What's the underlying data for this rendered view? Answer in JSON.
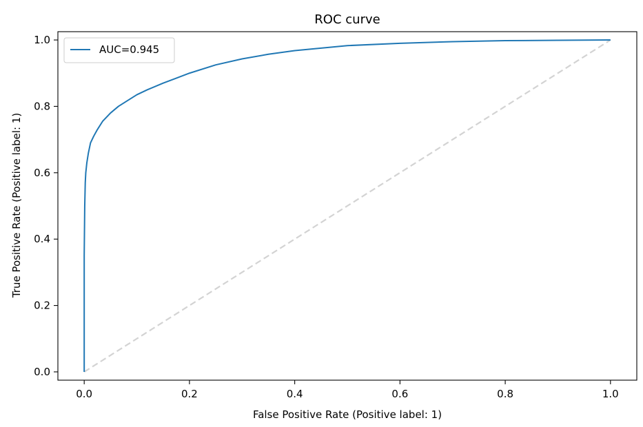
{
  "chart_data": {
    "type": "line",
    "title": "ROC curve",
    "xlabel": "False Positive Rate (Positive label: 1)",
    "ylabel": "True Positive Rate (Positive label: 1)",
    "xlim": [
      -0.05,
      1.05
    ],
    "ylim": [
      -0.025,
      1.025
    ],
    "x_ticks": [
      "0.0",
      "0.2",
      "0.4",
      "0.6",
      "0.8",
      "1.0"
    ],
    "y_ticks": [
      "0.0",
      "0.2",
      "0.4",
      "0.6",
      "0.8",
      "1.0"
    ],
    "grid": false,
    "legend_position": "upper-left",
    "series": [
      {
        "name": "AUC=0.945",
        "color": "#1f77b4",
        "style": "solid",
        "x": [
          0.0,
          0.0,
          0.001,
          0.002,
          0.003,
          0.005,
          0.008,
          0.012,
          0.018,
          0.025,
          0.035,
          0.05,
          0.065,
          0.08,
          0.1,
          0.12,
          0.15,
          0.2,
          0.25,
          0.3,
          0.35,
          0.4,
          0.5,
          0.6,
          0.7,
          0.8,
          0.9,
          1.0
        ],
        "y": [
          0.0,
          0.35,
          0.5,
          0.57,
          0.6,
          0.63,
          0.66,
          0.69,
          0.71,
          0.73,
          0.755,
          0.78,
          0.8,
          0.815,
          0.835,
          0.85,
          0.87,
          0.9,
          0.925,
          0.943,
          0.957,
          0.968,
          0.983,
          0.99,
          0.995,
          0.998,
          0.999,
          1.0
        ]
      },
      {
        "name": "",
        "color": "#d3d3d3",
        "style": "dashed",
        "x": [
          0.0,
          1.0
        ],
        "y": [
          0.0,
          1.0
        ]
      }
    ]
  }
}
